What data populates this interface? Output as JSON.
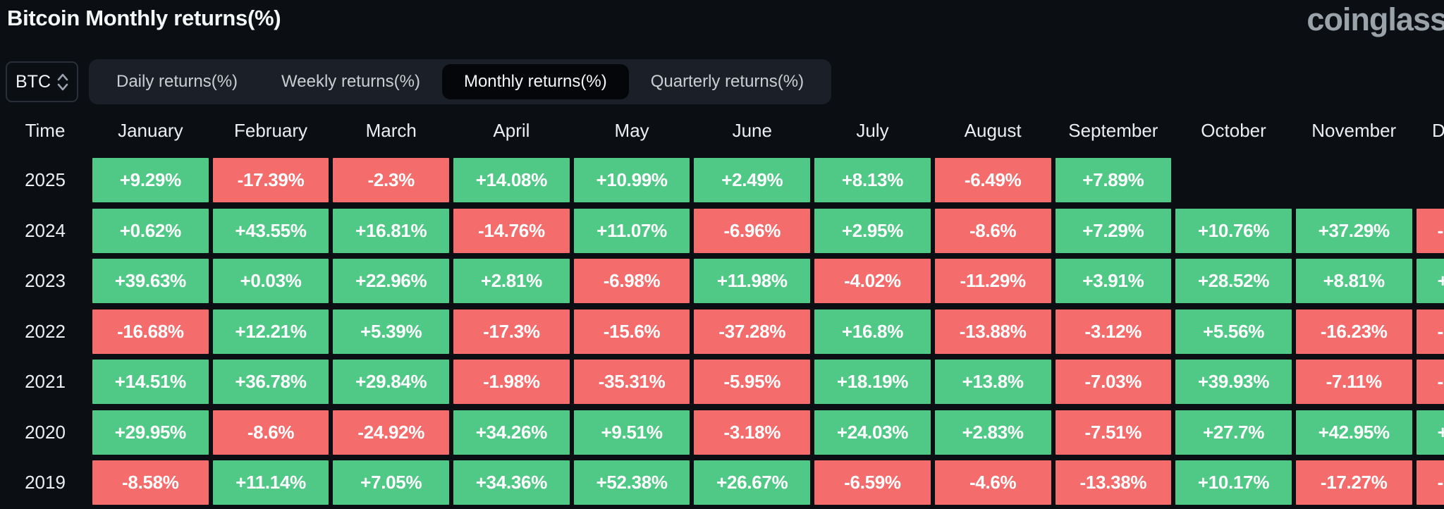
{
  "page": {
    "title": "Bitcoin Monthly returns(%)",
    "brand": "coinglass"
  },
  "controls": {
    "symbol": "BTC",
    "symbol_icon": "sort-arrows-icon",
    "tabs": [
      {
        "label": "Daily returns(%)",
        "active": false
      },
      {
        "label": "Weekly returns(%)",
        "active": false
      },
      {
        "label": "Monthly returns(%)",
        "active": true
      },
      {
        "label": "Quarterly returns(%)",
        "active": false
      }
    ]
  },
  "colors": {
    "positive": "#50c987",
    "negative": "#f56c6c",
    "background": "#0b0e13",
    "tabs_bar": "#1b2028",
    "active_tab": "#04060a"
  },
  "table": {
    "time_header": "Time",
    "months": [
      "January",
      "February",
      "March",
      "April",
      "May",
      "June",
      "July",
      "August",
      "September",
      "October",
      "November",
      "December"
    ],
    "rows": [
      {
        "year": "2025",
        "cells": [
          {
            "v": "+9.29%",
            "t": "up"
          },
          {
            "v": "-17.39%",
            "t": "down"
          },
          {
            "v": "-2.3%",
            "t": "down"
          },
          {
            "v": "+14.08%",
            "t": "up"
          },
          {
            "v": "+10.99%",
            "t": "up"
          },
          {
            "v": "+2.49%",
            "t": "up"
          },
          {
            "v": "+8.13%",
            "t": "up"
          },
          {
            "v": "-6.49%",
            "t": "down"
          },
          {
            "v": "+7.89%",
            "t": "up"
          },
          {
            "v": "",
            "t": "none"
          },
          {
            "v": "",
            "t": "none"
          },
          {
            "v": "",
            "t": "none"
          }
        ]
      },
      {
        "year": "2024",
        "cells": [
          {
            "v": "+0.62%",
            "t": "up"
          },
          {
            "v": "+43.55%",
            "t": "up"
          },
          {
            "v": "+16.81%",
            "t": "up"
          },
          {
            "v": "-14.76%",
            "t": "down"
          },
          {
            "v": "+11.07%",
            "t": "up"
          },
          {
            "v": "-6.96%",
            "t": "down"
          },
          {
            "v": "+2.95%",
            "t": "up"
          },
          {
            "v": "-8.6%",
            "t": "down"
          },
          {
            "v": "+7.29%",
            "t": "up"
          },
          {
            "v": "+10.76%",
            "t": "up"
          },
          {
            "v": "+37.29%",
            "t": "up"
          },
          {
            "v": "-",
            "t": "down",
            "partial": true
          }
        ]
      },
      {
        "year": "2023",
        "cells": [
          {
            "v": "+39.63%",
            "t": "up"
          },
          {
            "v": "+0.03%",
            "t": "up"
          },
          {
            "v": "+22.96%",
            "t": "up"
          },
          {
            "v": "+2.81%",
            "t": "up"
          },
          {
            "v": "-6.98%",
            "t": "down"
          },
          {
            "v": "+11.98%",
            "t": "up"
          },
          {
            "v": "-4.02%",
            "t": "down"
          },
          {
            "v": "-11.29%",
            "t": "down"
          },
          {
            "v": "+3.91%",
            "t": "up"
          },
          {
            "v": "+28.52%",
            "t": "up"
          },
          {
            "v": "+8.81%",
            "t": "up"
          },
          {
            "v": "+",
            "t": "up",
            "partial": true
          }
        ]
      },
      {
        "year": "2022",
        "cells": [
          {
            "v": "-16.68%",
            "t": "down"
          },
          {
            "v": "+12.21%",
            "t": "up"
          },
          {
            "v": "+5.39%",
            "t": "up"
          },
          {
            "v": "-17.3%",
            "t": "down"
          },
          {
            "v": "-15.6%",
            "t": "down"
          },
          {
            "v": "-37.28%",
            "t": "down"
          },
          {
            "v": "+16.8%",
            "t": "up"
          },
          {
            "v": "-13.88%",
            "t": "down"
          },
          {
            "v": "-3.12%",
            "t": "down"
          },
          {
            "v": "+5.56%",
            "t": "up"
          },
          {
            "v": "-16.23%",
            "t": "down"
          },
          {
            "v": "-",
            "t": "down",
            "partial": true
          }
        ]
      },
      {
        "year": "2021",
        "cells": [
          {
            "v": "+14.51%",
            "t": "up"
          },
          {
            "v": "+36.78%",
            "t": "up"
          },
          {
            "v": "+29.84%",
            "t": "up"
          },
          {
            "v": "-1.98%",
            "t": "down"
          },
          {
            "v": "-35.31%",
            "t": "down"
          },
          {
            "v": "-5.95%",
            "t": "down"
          },
          {
            "v": "+18.19%",
            "t": "up"
          },
          {
            "v": "+13.8%",
            "t": "up"
          },
          {
            "v": "-7.03%",
            "t": "down"
          },
          {
            "v": "+39.93%",
            "t": "up"
          },
          {
            "v": "-7.11%",
            "t": "down"
          },
          {
            "v": "-",
            "t": "down",
            "partial": true
          }
        ]
      },
      {
        "year": "2020",
        "cells": [
          {
            "v": "+29.95%",
            "t": "up"
          },
          {
            "v": "-8.6%",
            "t": "down"
          },
          {
            "v": "-24.92%",
            "t": "down"
          },
          {
            "v": "+34.26%",
            "t": "up"
          },
          {
            "v": "+9.51%",
            "t": "up"
          },
          {
            "v": "-3.18%",
            "t": "down"
          },
          {
            "v": "+24.03%",
            "t": "up"
          },
          {
            "v": "+2.83%",
            "t": "up"
          },
          {
            "v": "-7.51%",
            "t": "down"
          },
          {
            "v": "+27.7%",
            "t": "up"
          },
          {
            "v": "+42.95%",
            "t": "up"
          },
          {
            "v": "+",
            "t": "up",
            "partial": true
          }
        ]
      },
      {
        "year": "2019",
        "cells": [
          {
            "v": "-8.58%",
            "t": "down"
          },
          {
            "v": "+11.14%",
            "t": "up"
          },
          {
            "v": "+7.05%",
            "t": "up"
          },
          {
            "v": "+34.36%",
            "t": "up"
          },
          {
            "v": "+52.38%",
            "t": "up"
          },
          {
            "v": "+26.67%",
            "t": "up"
          },
          {
            "v": "-6.59%",
            "t": "down"
          },
          {
            "v": "-4.6%",
            "t": "down"
          },
          {
            "v": "-13.38%",
            "t": "down"
          },
          {
            "v": "+10.17%",
            "t": "up"
          },
          {
            "v": "-17.27%",
            "t": "down"
          },
          {
            "v": "-",
            "t": "down",
            "partial": true
          }
        ]
      }
    ]
  }
}
